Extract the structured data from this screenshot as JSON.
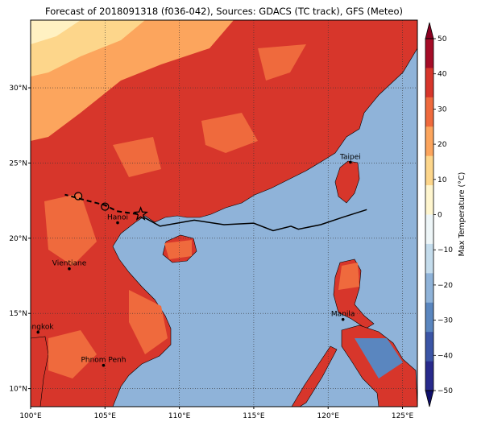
{
  "title": "Forecast of 2018091318 (f036-042), Sources: GDACS (TC track), GFS (Meteo)",
  "map": {
    "lon_range": [
      100,
      126
    ],
    "lat_range": [
      8.8,
      34.5
    ],
    "lon_ticks": [
      {
        "value": 100,
        "label": "100°E"
      },
      {
        "value": 105,
        "label": "105°E"
      },
      {
        "value": 110,
        "label": "110°E"
      },
      {
        "value": 115,
        "label": "115°E"
      },
      {
        "value": 120,
        "label": "120°E"
      },
      {
        "value": 125,
        "label": "125°E"
      }
    ],
    "lat_ticks": [
      {
        "value": 10,
        "label": "10°N"
      },
      {
        "value": 15,
        "label": "15°N"
      },
      {
        "value": 20,
        "label": "20°N"
      },
      {
        "value": 25,
        "label": "25°N"
      },
      {
        "value": 30,
        "label": "30°N"
      }
    ],
    "gridlines": true,
    "ocean_color": "#8fb3d9",
    "land_base_color": "#d7362b"
  },
  "cities": [
    {
      "name": "Taipei",
      "lon": 121.5,
      "lat": 25.05
    },
    {
      "name": "Hanoi",
      "lon": 105.85,
      "lat": 21.03
    },
    {
      "name": "Vientiane",
      "lon": 102.6,
      "lat": 17.97
    },
    {
      "name": "Manila",
      "lon": 121.0,
      "lat": 14.6
    },
    {
      "name": "Bangkok",
      "lon": 100.5,
      "lat": 13.75
    },
    {
      "name": "Phnom Penh",
      "lon": 104.9,
      "lat": 11.55
    }
  ],
  "track": {
    "forecast_line": [
      [
        122.6,
        21.9
      ],
      [
        121.0,
        21.4
      ],
      [
        119.5,
        20.9
      ],
      [
        118.0,
        20.6
      ],
      [
        117.5,
        20.8
      ],
      [
        116.3,
        20.5
      ],
      [
        115.0,
        21.0
      ],
      [
        113.0,
        20.9
      ],
      [
        111.0,
        21.2
      ],
      [
        108.7,
        20.8
      ],
      [
        107.6,
        21.4
      ]
    ],
    "dashed_line": [
      [
        107.2,
        21.6
      ],
      [
        105.8,
        21.8
      ],
      [
        105.0,
        22.2
      ],
      [
        103.4,
        22.6
      ],
      [
        102.3,
        22.9
      ]
    ],
    "star": {
      "lon": 107.4,
      "lat": 21.6
    },
    "circles": [
      {
        "lon": 105.0,
        "lat": 22.1
      },
      {
        "lon": 103.2,
        "lat": 22.8
      }
    ]
  },
  "colorbar": {
    "label": "Max Temperature (°C)",
    "ticks": [
      -50,
      -40,
      -30,
      -20,
      -10,
      0,
      10,
      20,
      30,
      40,
      50
    ],
    "colors": [
      "#282a8c",
      "#3b55a6",
      "#5a86bf",
      "#8fb3d9",
      "#c4dcec",
      "#eef6f8",
      "#fff6cf",
      "#fdd68b",
      "#fca55d",
      "#ef6a3d",
      "#d7362b",
      "#a50c27"
    ],
    "min_color": "#0f0f6a",
    "max_color": "#8a0021"
  }
}
